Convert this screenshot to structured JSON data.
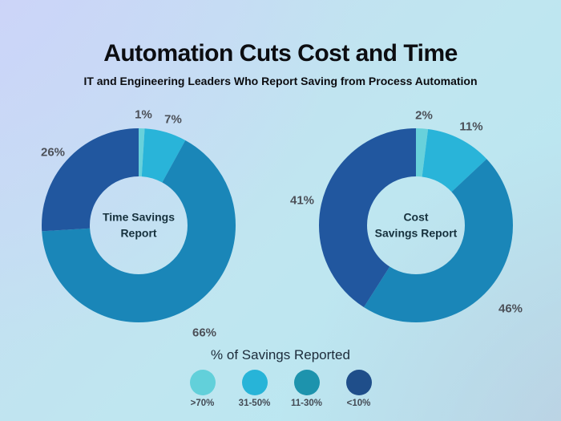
{
  "header": {
    "title": "Automation Cuts Cost and Time",
    "subtitle": "IT and Engineering Leaders Who Report Saving from Process Automation"
  },
  "chart_data": [
    {
      "type": "pie",
      "subtype": "donut",
      "name": "Time Savings Report",
      "center_label_lines": [
        "Time Savings",
        "Report"
      ],
      "order": "clockwise-from-top",
      "categories": [
        ">70%",
        "31-50%",
        "11-30%",
        "<10%"
      ],
      "values": [
        1,
        7,
        66,
        26
      ],
      "labels": [
        "1%",
        "7%",
        "66%",
        "26%"
      ],
      "colors": [
        "#68d1db",
        "#29b4d9",
        "#1a86b8",
        "#21579f"
      ]
    },
    {
      "type": "pie",
      "subtype": "donut",
      "name": "Cost Savings Report",
      "center_label_lines": [
        "Cost",
        "Savings Report"
      ],
      "order": "clockwise-from-top",
      "categories": [
        ">70%",
        "31-50%",
        "11-30%",
        "<10%"
      ],
      "values": [
        2,
        11,
        46,
        41
      ],
      "labels": [
        "2%",
        "11%",
        "46%",
        "41%"
      ],
      "colors": [
        "#68d1db",
        "#29b4d9",
        "#1a86b8",
        "#21579f"
      ]
    }
  ],
  "legend": {
    "title": "% of Savings Reported",
    "items": [
      {
        "label": ">70%",
        "color": "#62d0da"
      },
      {
        "label": "31-50%",
        "color": "#27b4d8"
      },
      {
        "label": "11-30%",
        "color": "#1d93ad"
      },
      {
        "label": "<10%",
        "color": "#1f4e8a"
      }
    ]
  },
  "theme": {
    "background_corner_topleft": "#c8d2f8",
    "background_corner_bottomleft": "#b8e7f2",
    "background_corner_topright": "#bfe6ef",
    "background_corner_bottomright": "#bccde0",
    "title_color": "#0c0d11",
    "slice_label_color": "#4c5058",
    "center_label_color": "#16313d"
  }
}
